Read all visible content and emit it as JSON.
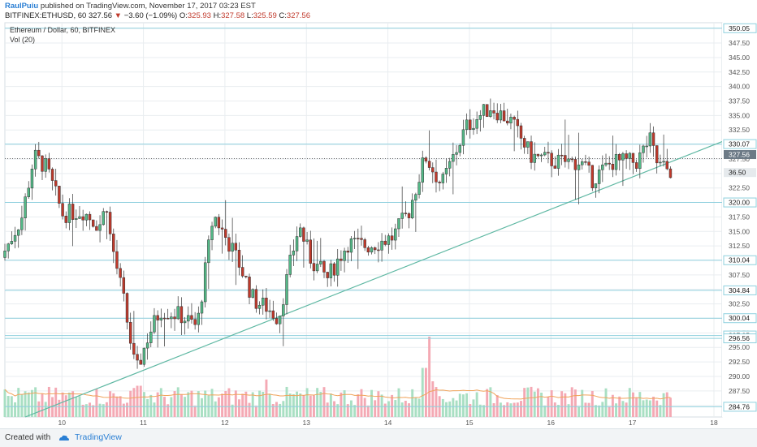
{
  "header": {
    "author": "RaulPuiu",
    "published_text": "published on TradingView.com, November 17, 2017 03:23 EST",
    "symbol": "BITFINEX:ETHUSD, 60",
    "last": "327.56",
    "arrow": "▼",
    "change": "−3.60 (−1.09%)",
    "o_label": "O:",
    "o_value": "325.93",
    "h_label": "H:",
    "h_value": "327.58",
    "l_label": "L:",
    "l_value": "325.59",
    "c_label": "C:",
    "c_value": "327.56"
  },
  "footer": {
    "created": "Created with",
    "brand": "TradingView"
  },
  "colors": {
    "up": "#53b987",
    "down": "#c0392b",
    "vol_up": "#a9dfc3",
    "vol_down": "#f4a9b4",
    "line": "#5fb8a3",
    "level": "#8fd0de",
    "ma": "#f0a35a",
    "grid": "#e9edf0"
  },
  "chart_data": {
    "type": "candlestick",
    "title": "Ethereum / Dollar, 60, BITFINEX",
    "indicator": "Vol (20)",
    "ylim": [
      283,
      351
    ],
    "price_ticks": [
      285.0,
      287.5,
      290.0,
      292.5,
      295.0,
      297.5,
      300.0,
      302.5,
      305.0,
      307.5,
      310.0,
      312.5,
      315.0,
      317.5,
      320.0,
      322.5,
      325.0,
      327.5,
      330.0,
      332.5,
      335.0,
      337.5,
      340.0,
      342.5,
      345.0,
      347.5,
      350.0
    ],
    "x_labels": [
      "10",
      "11",
      "12",
      "13",
      "14",
      "15",
      "16",
      "17",
      "18"
    ],
    "x_label_day": [
      10,
      11,
      12,
      13,
      14,
      15,
      16,
      17,
      18
    ],
    "x_range_days": [
      9.3,
      18.1
    ],
    "horizontal_levels": [
      350.05,
      330.07,
      320.0,
      310.04,
      304.84,
      300.04,
      297.05,
      296.56,
      284.76
    ],
    "price_badges": [
      {
        "label": "327.56",
        "value": 327.56,
        "style": "price"
      },
      {
        "label": "36.50",
        "value": 326.0,
        "style": "volume"
      }
    ],
    "trendline": {
      "from": [
        9.55,
        283.0
      ],
      "to": [
        18.1,
        330.5
      ]
    },
    "dotted_last_price": 327.56,
    "anchors": [
      [
        9.3,
        310.5
      ],
      [
        9.55,
        317.5
      ],
      [
        9.7,
        328.0
      ],
      [
        9.85,
        326.0
      ],
      [
        10.05,
        318.0
      ],
      [
        10.3,
        318.5
      ],
      [
        10.5,
        316.0
      ],
      [
        10.6,
        320.0
      ],
      [
        10.6,
        316.5
      ],
      [
        10.8,
        303.0
      ],
      [
        10.95,
        290.5
      ],
      [
        11.1,
        297.0
      ],
      [
        11.25,
        301.5
      ],
      [
        11.5,
        300.5
      ],
      [
        11.7,
        298.5
      ],
      [
        11.9,
        318.0
      ],
      [
        12.2,
        310.0
      ],
      [
        12.4,
        303.0
      ],
      [
        12.55,
        302.0
      ],
      [
        12.7,
        300.0
      ],
      [
        12.85,
        310.0
      ],
      [
        12.95,
        316.0
      ],
      [
        13.1,
        310.0
      ],
      [
        13.3,
        307.0
      ],
      [
        13.55,
        313.0
      ],
      [
        13.8,
        312.5
      ],
      [
        14.1,
        314.0
      ],
      [
        14.3,
        318.5
      ],
      [
        14.5,
        328.0
      ],
      [
        14.7,
        323.0
      ],
      [
        15.0,
        333.0
      ],
      [
        15.3,
        336.5
      ],
      [
        15.55,
        334.0
      ],
      [
        15.8,
        328.0
      ],
      [
        16.1,
        327.0
      ],
      [
        16.4,
        327.0
      ],
      [
        16.55,
        324.0
      ],
      [
        16.8,
        327.0
      ],
      [
        17.1,
        327.0
      ],
      [
        17.25,
        331.0
      ],
      [
        17.35,
        326.5
      ],
      [
        17.5,
        325.5
      ]
    ],
    "volume_spikes": [
      [
        10.95,
        0.35
      ],
      [
        11.0,
        0.28
      ],
      [
        12.5,
        0.42
      ],
      [
        14.45,
        0.55
      ],
      [
        14.5,
        0.9
      ],
      [
        14.55,
        0.4
      ]
    ]
  }
}
